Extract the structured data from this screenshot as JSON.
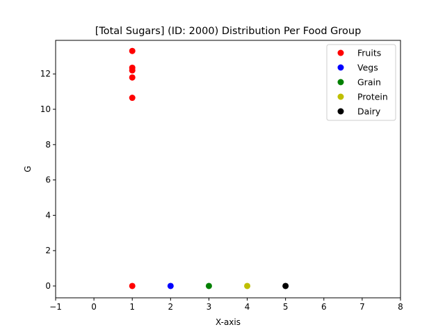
{
  "chart_data": {
    "type": "scatter",
    "title": "[Total Sugars] (ID: 2000) Distribution Per Food Group",
    "xlabel": "X-axis",
    "ylabel": "G",
    "xlim": [
      -1,
      8
    ],
    "ylim": [
      -0.67,
      13.9
    ],
    "xticks": [
      -1,
      0,
      1,
      2,
      3,
      4,
      5,
      6,
      7,
      8
    ],
    "yticks": [
      0,
      2,
      4,
      6,
      8,
      10,
      12
    ],
    "grid": false,
    "legend_position": "top-right",
    "series": [
      {
        "name": "Fruits",
        "color": "#ff0000",
        "points": [
          [
            1,
            13.3
          ],
          [
            1,
            12.35
          ],
          [
            1,
            12.2
          ],
          [
            1,
            11.8
          ],
          [
            1,
            10.65
          ],
          [
            1,
            0
          ]
        ]
      },
      {
        "name": "Vegs",
        "color": "#0000ff",
        "points": [
          [
            2,
            0
          ]
        ]
      },
      {
        "name": "Grain",
        "color": "#008000",
        "points": [
          [
            3,
            0
          ]
        ]
      },
      {
        "name": "Protein",
        "color": "#bfbf00",
        "points": [
          [
            4,
            0
          ]
        ]
      },
      {
        "name": "Dairy",
        "color": "#000000",
        "points": [
          [
            5,
            0
          ]
        ]
      }
    ]
  }
}
